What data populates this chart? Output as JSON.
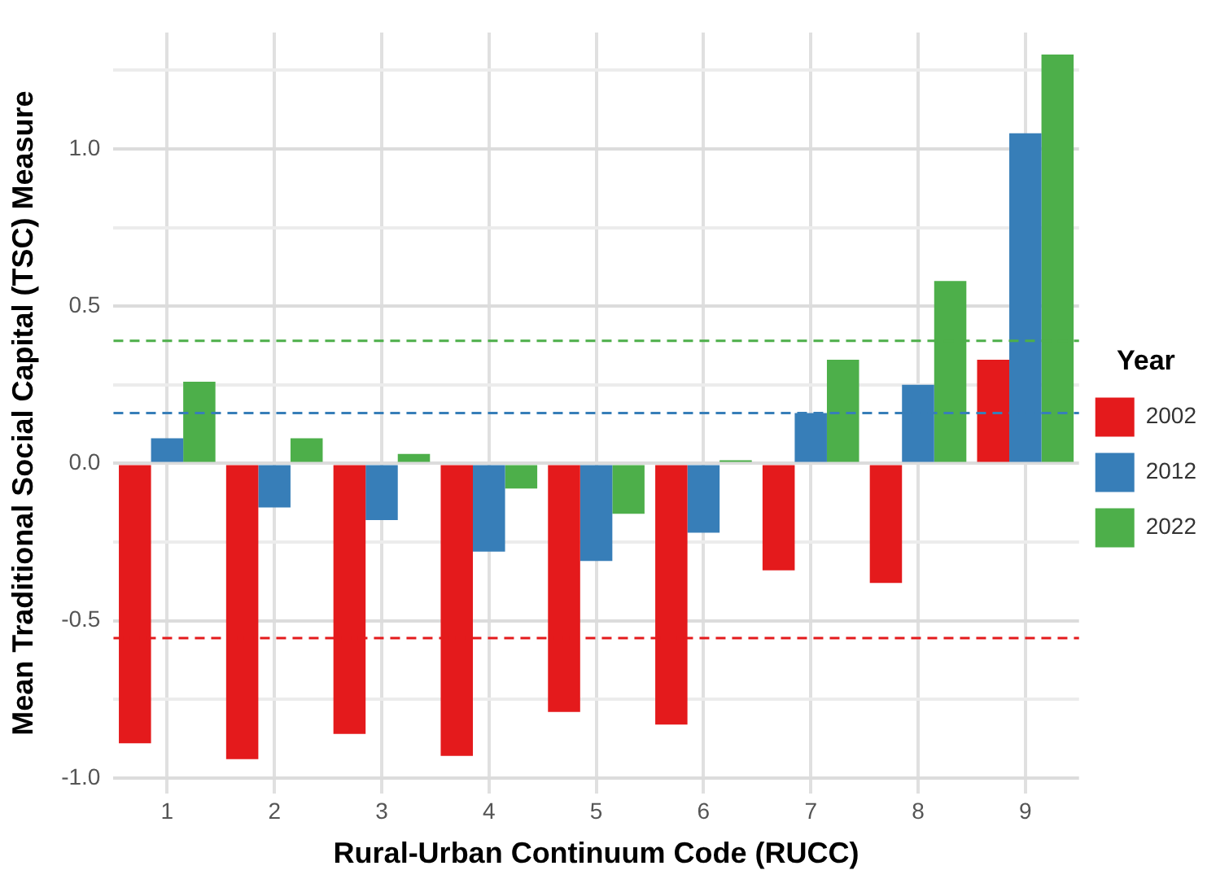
{
  "chart_data": {
    "type": "bar",
    "xlabel": "Rural-Urban Continuum Code (RUCC)",
    "ylabel": "Mean Traditional Social Capital (TSC) Measure",
    "legend_title": "Year",
    "categories": [
      "1",
      "2",
      "3",
      "4",
      "5",
      "6",
      "7",
      "8",
      "9"
    ],
    "series": [
      {
        "name": "2002",
        "color": "#e41a1c",
        "values": [
          -0.89,
          -0.94,
          -0.86,
          -0.93,
          -0.79,
          -0.83,
          -0.34,
          -0.38,
          0.33
        ]
      },
      {
        "name": "2012",
        "color": "#377eb8",
        "values": [
          0.08,
          -0.14,
          -0.18,
          -0.28,
          -0.31,
          -0.22,
          0.16,
          0.25,
          1.05
        ]
      },
      {
        "name": "2022",
        "color": "#4daf4a",
        "values": [
          0.26,
          0.08,
          0.03,
          -0.08,
          -0.16,
          0.01,
          0.33,
          0.58,
          1.3
        ]
      }
    ],
    "ref_lines": [
      {
        "axis": "y",
        "value": 0.39,
        "color": "#4daf4a",
        "line_style": "dashed"
      },
      {
        "axis": "y",
        "value": 0.16,
        "color": "#377eb8",
        "line_style": "dashed"
      },
      {
        "axis": "y",
        "value": -0.555,
        "color": "#e41a1c",
        "line_style": "dashed"
      }
    ],
    "ylim": [
      -1.05,
      1.37
    ],
    "yticks": [
      {
        "value": -1,
        "label": "-1.0"
      },
      {
        "value": -0.75,
        "label": null
      },
      {
        "value": -0.5,
        "label": "-0.5"
      },
      {
        "value": -0.25,
        "label": null
      },
      {
        "value": 0,
        "label": "0.0"
      },
      {
        "value": 0.25,
        "label": null
      },
      {
        "value": 0.5,
        "label": "0.5"
      },
      {
        "value": 0.75,
        "label": null
      },
      {
        "value": 1,
        "label": "1.0"
      },
      {
        "value": 1.25,
        "label": null
      }
    ],
    "grid": true,
    "legend": "right"
  }
}
